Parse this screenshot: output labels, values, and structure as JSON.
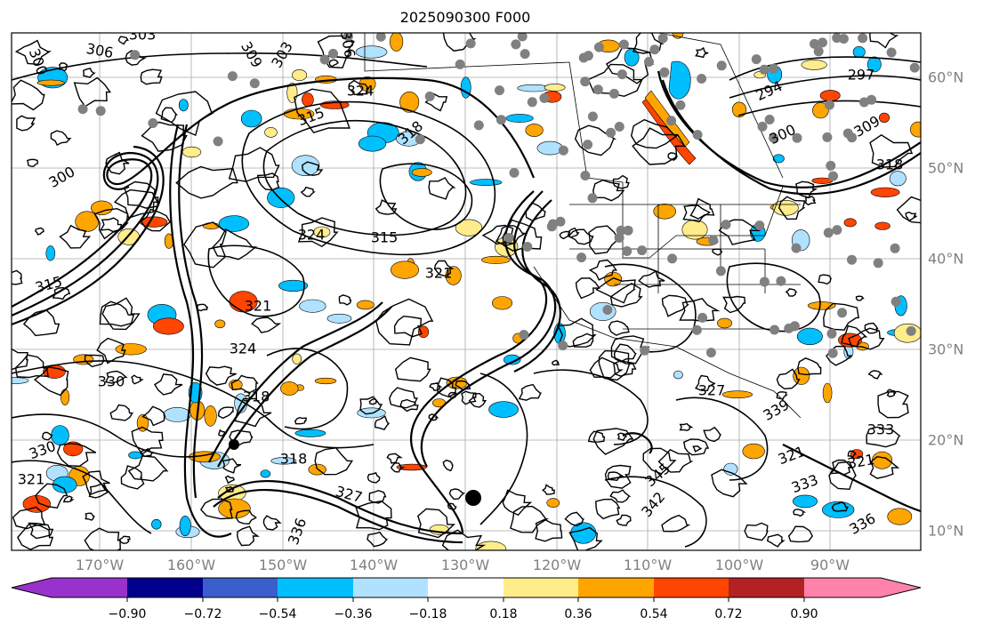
{
  "title": "2025090300 F000",
  "lon_labels": [
    "170°W",
    "160°W",
    "150°W",
    "140°W",
    "130°W",
    "120°W",
    "110°W",
    "100°W",
    "90°W"
  ],
  "lat_labels": [
    "60°N",
    "50°N",
    "40°N",
    "30°N",
    "20°N",
    "10°N"
  ],
  "contour_labels": [
    "303",
    "306",
    "300",
    "309",
    "303",
    "306",
    "324",
    "315",
    "297",
    "294",
    "300",
    "309",
    "318",
    "300",
    "315",
    "324",
    "315",
    "318",
    "321",
    "324",
    "321",
    "330",
    "318",
    "318",
    "327",
    "330",
    "321",
    "336",
    "339",
    "345",
    "342",
    "333",
    "321",
    "321",
    "333",
    "336",
    "327"
  ],
  "colorbar": {
    "tick_labels": [
      "−0.90",
      "−0.72",
      "−0.54",
      "−0.36",
      "−0.18",
      "0.18",
      "0.36",
      "0.54",
      "0.72",
      "0.90"
    ],
    "colors": [
      "#9932cc",
      "#00008b",
      "#3a5fcd",
      "#00bfff",
      "#b0e2ff",
      "#ffffff",
      "#ffec8b",
      "#ffa500",
      "#ff4500",
      "#b22222",
      "#ff82ab"
    ]
  },
  "colors": {
    "contour": "#000000",
    "grid": "#a9a9a9",
    "axis_text": "#808080",
    "station": "#808080"
  }
}
